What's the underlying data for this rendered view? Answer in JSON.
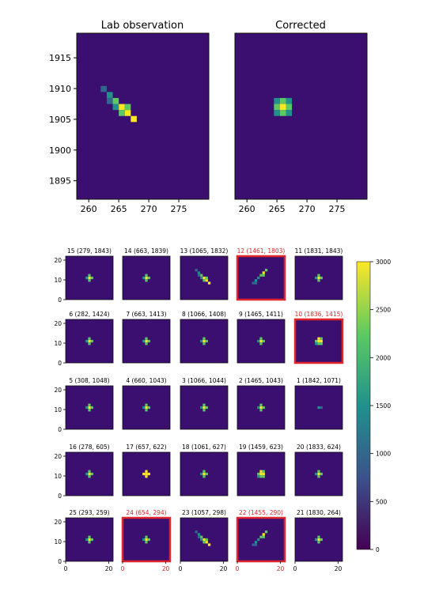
{
  "colors": {
    "background": "#3b0f70",
    "highlight_border": "#e0262b",
    "highlight_text": "#d62728",
    "colormap": [
      "#440154",
      "#3b528b",
      "#21918c",
      "#5ec962",
      "#fde725"
    ]
  },
  "chart_data": [
    {
      "type": "heatmap",
      "title": "Lab observation",
      "xlim": [
        258,
        280
      ],
      "ylim": [
        1892,
        1919
      ],
      "xticks": [
        "260",
        "265",
        "270",
        "275"
      ],
      "yticks": [
        "1915",
        "1910",
        "1905",
        "1900",
        "1895"
      ],
      "spot": {
        "x": 265.5,
        "y": 1907,
        "shape": "streak"
      }
    },
    {
      "type": "heatmap",
      "title": "Corrected",
      "xlim": [
        258,
        280
      ],
      "ylim": [
        1892,
        1919
      ],
      "xticks": [
        "260",
        "265",
        "270",
        "275"
      ],
      "yticks": [],
      "spot": {
        "x": 266,
        "y": 1907,
        "shape": "round"
      }
    },
    {
      "type": "heatmap",
      "grid": "5x5 small multiples",
      "xlim": [
        0,
        22
      ],
      "ylim": [
        0,
        22
      ],
      "yticks": [
        "20",
        "10",
        "0"
      ],
      "xticks": [
        "0",
        "20"
      ],
      "colorbar": {
        "min": 0,
        "max": 3000,
        "ticks": [
          "3000",
          "2500",
          "2000",
          "1500",
          "1000",
          "500",
          "0"
        ]
      },
      "panels": [
        {
          "title": "15 (279, 1843)",
          "highlight": false,
          "shape": "dot"
        },
        {
          "title": "14 (663, 1839)",
          "highlight": false,
          "shape": "dot"
        },
        {
          "title": "13 (1065, 1832)",
          "highlight": false,
          "shape": "streak"
        },
        {
          "title": "12 (1461, 1803)",
          "highlight": true,
          "shape": "longstreak"
        },
        {
          "title": "11 (1831, 1843)",
          "highlight": false,
          "shape": "dot"
        },
        {
          "title": "6 (282, 1424)",
          "highlight": false,
          "shape": "dot"
        },
        {
          "title": "7 (663, 1413)",
          "highlight": false,
          "shape": "dot"
        },
        {
          "title": "8 (1066, 1408)",
          "highlight": false,
          "shape": "dot"
        },
        {
          "title": "9 (1465, 1411)",
          "highlight": false,
          "shape": "dot"
        },
        {
          "title": "10 (1836, 1415)",
          "highlight": true,
          "shape": "blob"
        },
        {
          "title": "5 (308, 1048)",
          "highlight": false,
          "shape": "dot"
        },
        {
          "title": "4 (660, 1043)",
          "highlight": false,
          "shape": "dot"
        },
        {
          "title": "3 (1066, 1044)",
          "highlight": false,
          "shape": "dot"
        },
        {
          "title": "2 (1465, 1043)",
          "highlight": false,
          "shape": "dot"
        },
        {
          "title": "1 (1842, 1071)",
          "highlight": false,
          "shape": "faint"
        },
        {
          "title": "16 (278, 605)",
          "highlight": false,
          "shape": "dot"
        },
        {
          "title": "17 (657, 622)",
          "highlight": false,
          "shape": "cross"
        },
        {
          "title": "18 (1061, 627)",
          "highlight": false,
          "shape": "dot"
        },
        {
          "title": "19 (1459, 623)",
          "highlight": false,
          "shape": "blob"
        },
        {
          "title": "20 (1833, 624)",
          "highlight": false,
          "shape": "dot"
        },
        {
          "title": "25 (293, 259)",
          "highlight": false,
          "shape": "dot"
        },
        {
          "title": "24 (654, 294)",
          "highlight": true,
          "shape": "dot"
        },
        {
          "title": "23 (1057, 298)",
          "highlight": false,
          "shape": "streak"
        },
        {
          "title": "22 (1455, 290)",
          "highlight": true,
          "shape": "longstreak"
        },
        {
          "title": "21 (1830, 264)",
          "highlight": false,
          "shape": "dot"
        }
      ]
    }
  ]
}
